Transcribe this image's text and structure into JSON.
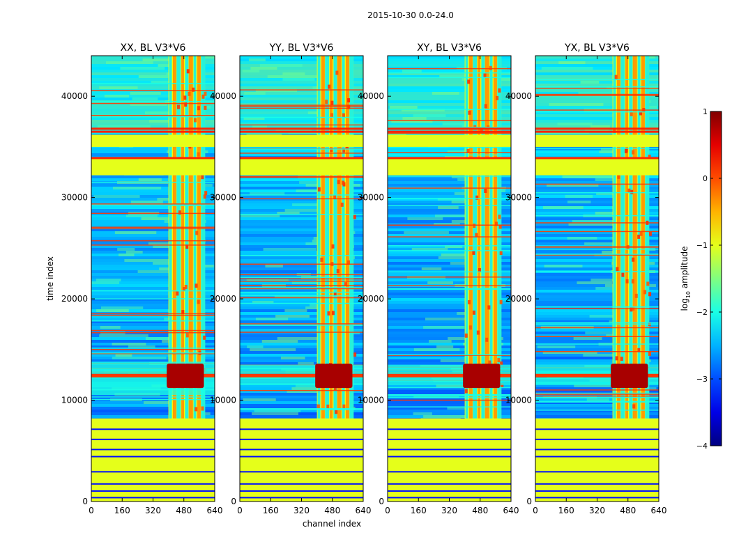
{
  "suptitle": "2015-10-30 0.0-24.0",
  "chart_data": {
    "type": "heatmap",
    "panels": [
      {
        "title": "XX, BL V3*V6"
      },
      {
        "title": "YY, BL V3*V6"
      },
      {
        "title": "XY, BL V3*V6"
      },
      {
        "title": "YX, BL V3*V6"
      }
    ],
    "xlabel": "channel index",
    "ylabel": "time index",
    "xlim": [
      0,
      640
    ],
    "ylim": [
      0,
      44000
    ],
    "xticks": [
      0,
      160,
      320,
      480,
      640
    ],
    "yticks": [
      0,
      10000,
      20000,
      30000,
      40000
    ],
    "colorbar": {
      "label_main": "log",
      "label_sub": "10",
      "label_rest": " amplitude",
      "range": [
        -4,
        1
      ],
      "ticks": [
        1,
        0,
        -1,
        -2,
        -3,
        -4
      ]
    },
    "features": {
      "flagged_time_bands": [
        [
          0,
          8200
        ],
        [
          32200,
          34000
        ],
        [
          35000,
          36200
        ]
      ],
      "rfi_channel_band": [
        400,
        590
      ],
      "strong_signal_time": [
        11500,
        13500
      ],
      "strong_signal_time_XX": [
        10500,
        13800
      ]
    }
  }
}
